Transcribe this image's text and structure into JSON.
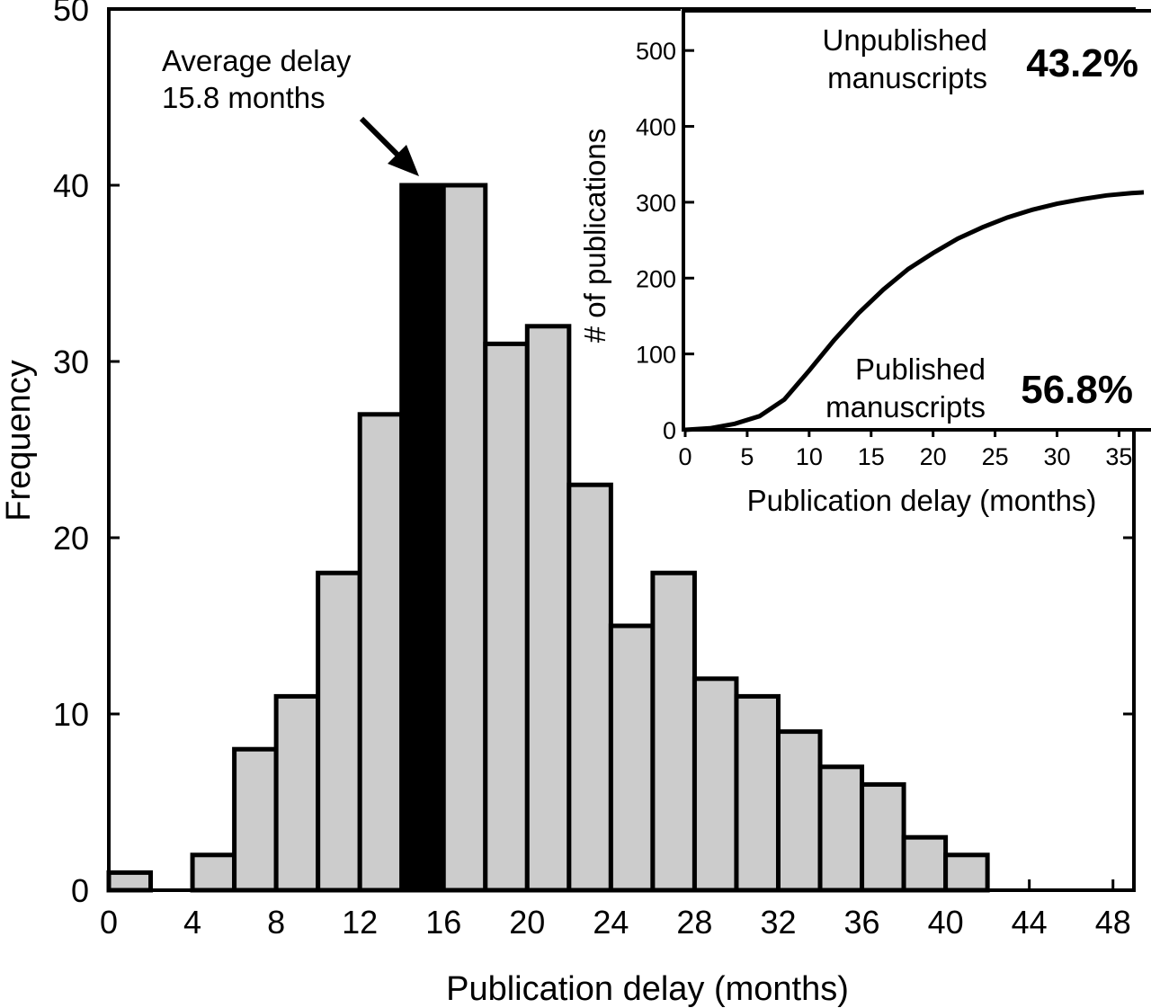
{
  "chart_data": [
    {
      "type": "bar",
      "title": "",
      "xlabel": "Publication delay (months)",
      "ylabel": "Frequency",
      "xlim": [
        0,
        49
      ],
      "ylim": [
        0,
        50
      ],
      "x_ticks": [
        "0",
        "4",
        "8",
        "12",
        "16",
        "20",
        "24",
        "28",
        "32",
        "36",
        "40",
        "44",
        "48"
      ],
      "y_ticks": [
        "0",
        "10",
        "20",
        "30",
        "40",
        "50"
      ],
      "bin_width": 2,
      "bins": [
        {
          "start": 0,
          "value": 1
        },
        {
          "start": 2,
          "value": 0
        },
        {
          "start": 4,
          "value": 2
        },
        {
          "start": 6,
          "value": 8
        },
        {
          "start": 8,
          "value": 11
        },
        {
          "start": 10,
          "value": 18
        },
        {
          "start": 12,
          "value": 27
        },
        {
          "start": 14,
          "value": 40,
          "highlight": true
        },
        {
          "start": 16,
          "value": 40
        },
        {
          "start": 18,
          "value": 31
        },
        {
          "start": 20,
          "value": 32
        },
        {
          "start": 22,
          "value": 23
        },
        {
          "start": 24,
          "value": 15
        },
        {
          "start": 26,
          "value": 18
        },
        {
          "start": 28,
          "value": 12
        },
        {
          "start": 30,
          "value": 11
        },
        {
          "start": 32,
          "value": 9
        },
        {
          "start": 34,
          "value": 7
        },
        {
          "start": 36,
          "value": 6
        },
        {
          "start": 38,
          "value": 3
        },
        {
          "start": 40,
          "value": 2
        }
      ],
      "bar_color": "#cccccc",
      "highlight_color": "#000000",
      "annotation": {
        "line1": "Average delay",
        "line2": "15.8 months",
        "points_to_x": 15
      }
    },
    {
      "type": "line",
      "title": "",
      "xlabel": "Publication delay (months)",
      "ylabel": "# of publications",
      "xlim": [
        0,
        37
      ],
      "ylim": [
        0,
        550
      ],
      "x_ticks": [
        "0",
        "5",
        "10",
        "15",
        "20",
        "25",
        "30",
        "35"
      ],
      "y_ticks": [
        "0",
        "100",
        "200",
        "300",
        "400",
        "500"
      ],
      "x": [
        0,
        2,
        4,
        6,
        8,
        10,
        12,
        14,
        16,
        18,
        20,
        22,
        24,
        26,
        28,
        30,
        32,
        34,
        36,
        37
      ],
      "y": [
        0,
        2,
        8,
        18,
        40,
        78,
        118,
        154,
        185,
        212,
        233,
        252,
        267,
        280,
        290,
        298,
        304,
        309,
        312,
        313
      ],
      "annotations": {
        "unpublished_line1": "Unpublished",
        "unpublished_line2": "manuscripts",
        "unpublished_pct": "43.2%",
        "published_line1": "Published",
        "published_line2": "manuscripts",
        "published_pct": "56.8%"
      }
    }
  ]
}
